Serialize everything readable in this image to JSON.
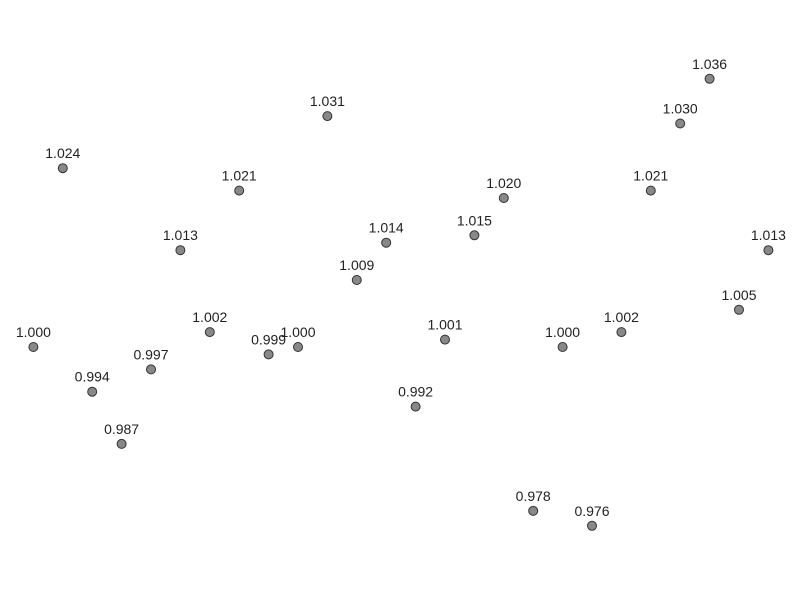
{
  "chart_data": {
    "type": "scatter",
    "title": "",
    "xlabel": "",
    "ylabel": "",
    "xlim": [
      0,
      27
    ],
    "ylim": [
      0.96,
      1.04
    ],
    "grid": false,
    "legend": "none",
    "marker_color": "#888888",
    "marker_edge_color": "#333333",
    "points": [
      {
        "x": 1,
        "y": 1.0,
        "label": "1.000"
      },
      {
        "x": 2,
        "y": 1.024,
        "label": "1.024"
      },
      {
        "x": 3,
        "y": 0.994,
        "label": "0.994"
      },
      {
        "x": 4,
        "y": 0.987,
        "label": "0.987"
      },
      {
        "x": 5,
        "y": 0.997,
        "label": "0.997"
      },
      {
        "x": 6,
        "y": 1.013,
        "label": "1.013"
      },
      {
        "x": 7,
        "y": 1.002,
        "label": "1.002"
      },
      {
        "x": 8,
        "y": 1.021,
        "label": "1.021"
      },
      {
        "x": 9,
        "y": 0.999,
        "label": "0.999"
      },
      {
        "x": 10,
        "y": 1.0,
        "label": "1.000"
      },
      {
        "x": 11,
        "y": 1.031,
        "label": "1.031"
      },
      {
        "x": 12,
        "y": 1.009,
        "label": "1.009"
      },
      {
        "x": 13,
        "y": 1.014,
        "label": "1.014"
      },
      {
        "x": 14,
        "y": 0.992,
        "label": "0.992"
      },
      {
        "x": 15,
        "y": 1.001,
        "label": "1.001"
      },
      {
        "x": 16,
        "y": 1.015,
        "label": "1.015"
      },
      {
        "x": 17,
        "y": 1.02,
        "label": "1.020"
      },
      {
        "x": 18,
        "y": 0.978,
        "label": "0.978"
      },
      {
        "x": 19,
        "y": 1.0,
        "label": "1.000"
      },
      {
        "x": 20,
        "y": 0.976,
        "label": "0.976"
      },
      {
        "x": 21,
        "y": 1.002,
        "label": "1.002"
      },
      {
        "x": 22,
        "y": 1.021,
        "label": "1.021"
      },
      {
        "x": 23,
        "y": 1.03,
        "label": "1.030"
      },
      {
        "x": 24,
        "y": 1.036,
        "label": "1.036"
      },
      {
        "x": 25,
        "y": 1.005,
        "label": "1.005"
      },
      {
        "x": 26,
        "y": 1.013,
        "label": "1.013"
      }
    ]
  }
}
